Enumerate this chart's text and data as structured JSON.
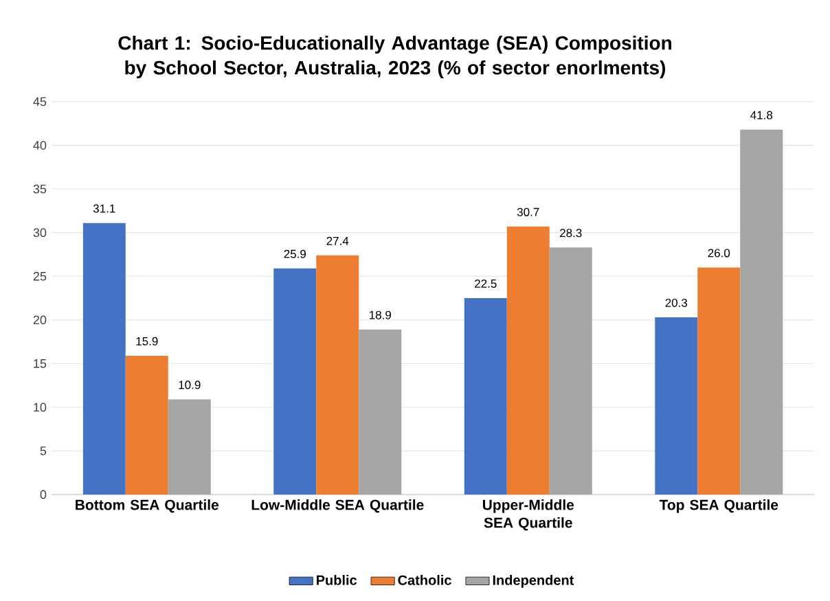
{
  "chart_data": {
    "type": "bar",
    "title": "Chart 1: Socio-Educationally Advantage (SEA) Composition by School Sector, Australia, 2023 (% of sector enorlments)",
    "categories": [
      "Bottom SEA Quartile",
      "Low-Middle SEA Quartile",
      "Upper-Middle SEA Quartile",
      "Top SEA Quartile"
    ],
    "series": [
      {
        "name": "Public",
        "color": "#4472c4",
        "values": [
          31.1,
          25.9,
          22.5,
          20.3
        ],
        "value_labels": [
          "31.1",
          "25.9",
          "22.5",
          "20.3"
        ]
      },
      {
        "name": "Catholic",
        "color": "#ed7d31",
        "values": [
          15.9,
          27.4,
          30.7,
          26.0
        ],
        "value_labels": [
          "15.9",
          "27.4",
          "30.7",
          "26.0"
        ]
      },
      {
        "name": "Independent",
        "color": "#a5a5a5",
        "values": [
          10.9,
          18.9,
          28.3,
          41.8
        ],
        "value_labels": [
          "10.9",
          "18.9",
          "28.3",
          "41.8"
        ]
      }
    ],
    "ylim": [
      0,
      45
    ],
    "yticks": [
      0,
      5,
      10,
      15,
      20,
      25,
      30,
      35,
      40,
      45
    ],
    "grid": "y",
    "legend": "bottom"
  }
}
